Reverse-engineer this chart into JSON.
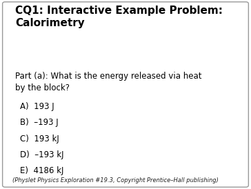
{
  "title": "CQ1: Interactive Example Problem:\nCalorimetry",
  "question": "Part (a): What is the energy released via heat\nby the block?",
  "choices": [
    "A)  193 J",
    "B)  –193 J",
    "C)  193 kJ",
    "D)  –193 kJ",
    "E)  4186 kJ"
  ],
  "footnote": "(Physlet Physics Exploration #19.3, Copyright Prentice–Hall publishing)",
  "bg_color": "#ffffff",
  "border_color": "#999999",
  "title_fontsize": 11,
  "question_fontsize": 8.5,
  "choices_fontsize": 8.5,
  "footnote_fontsize": 6,
  "font": "DejaVu Sans"
}
